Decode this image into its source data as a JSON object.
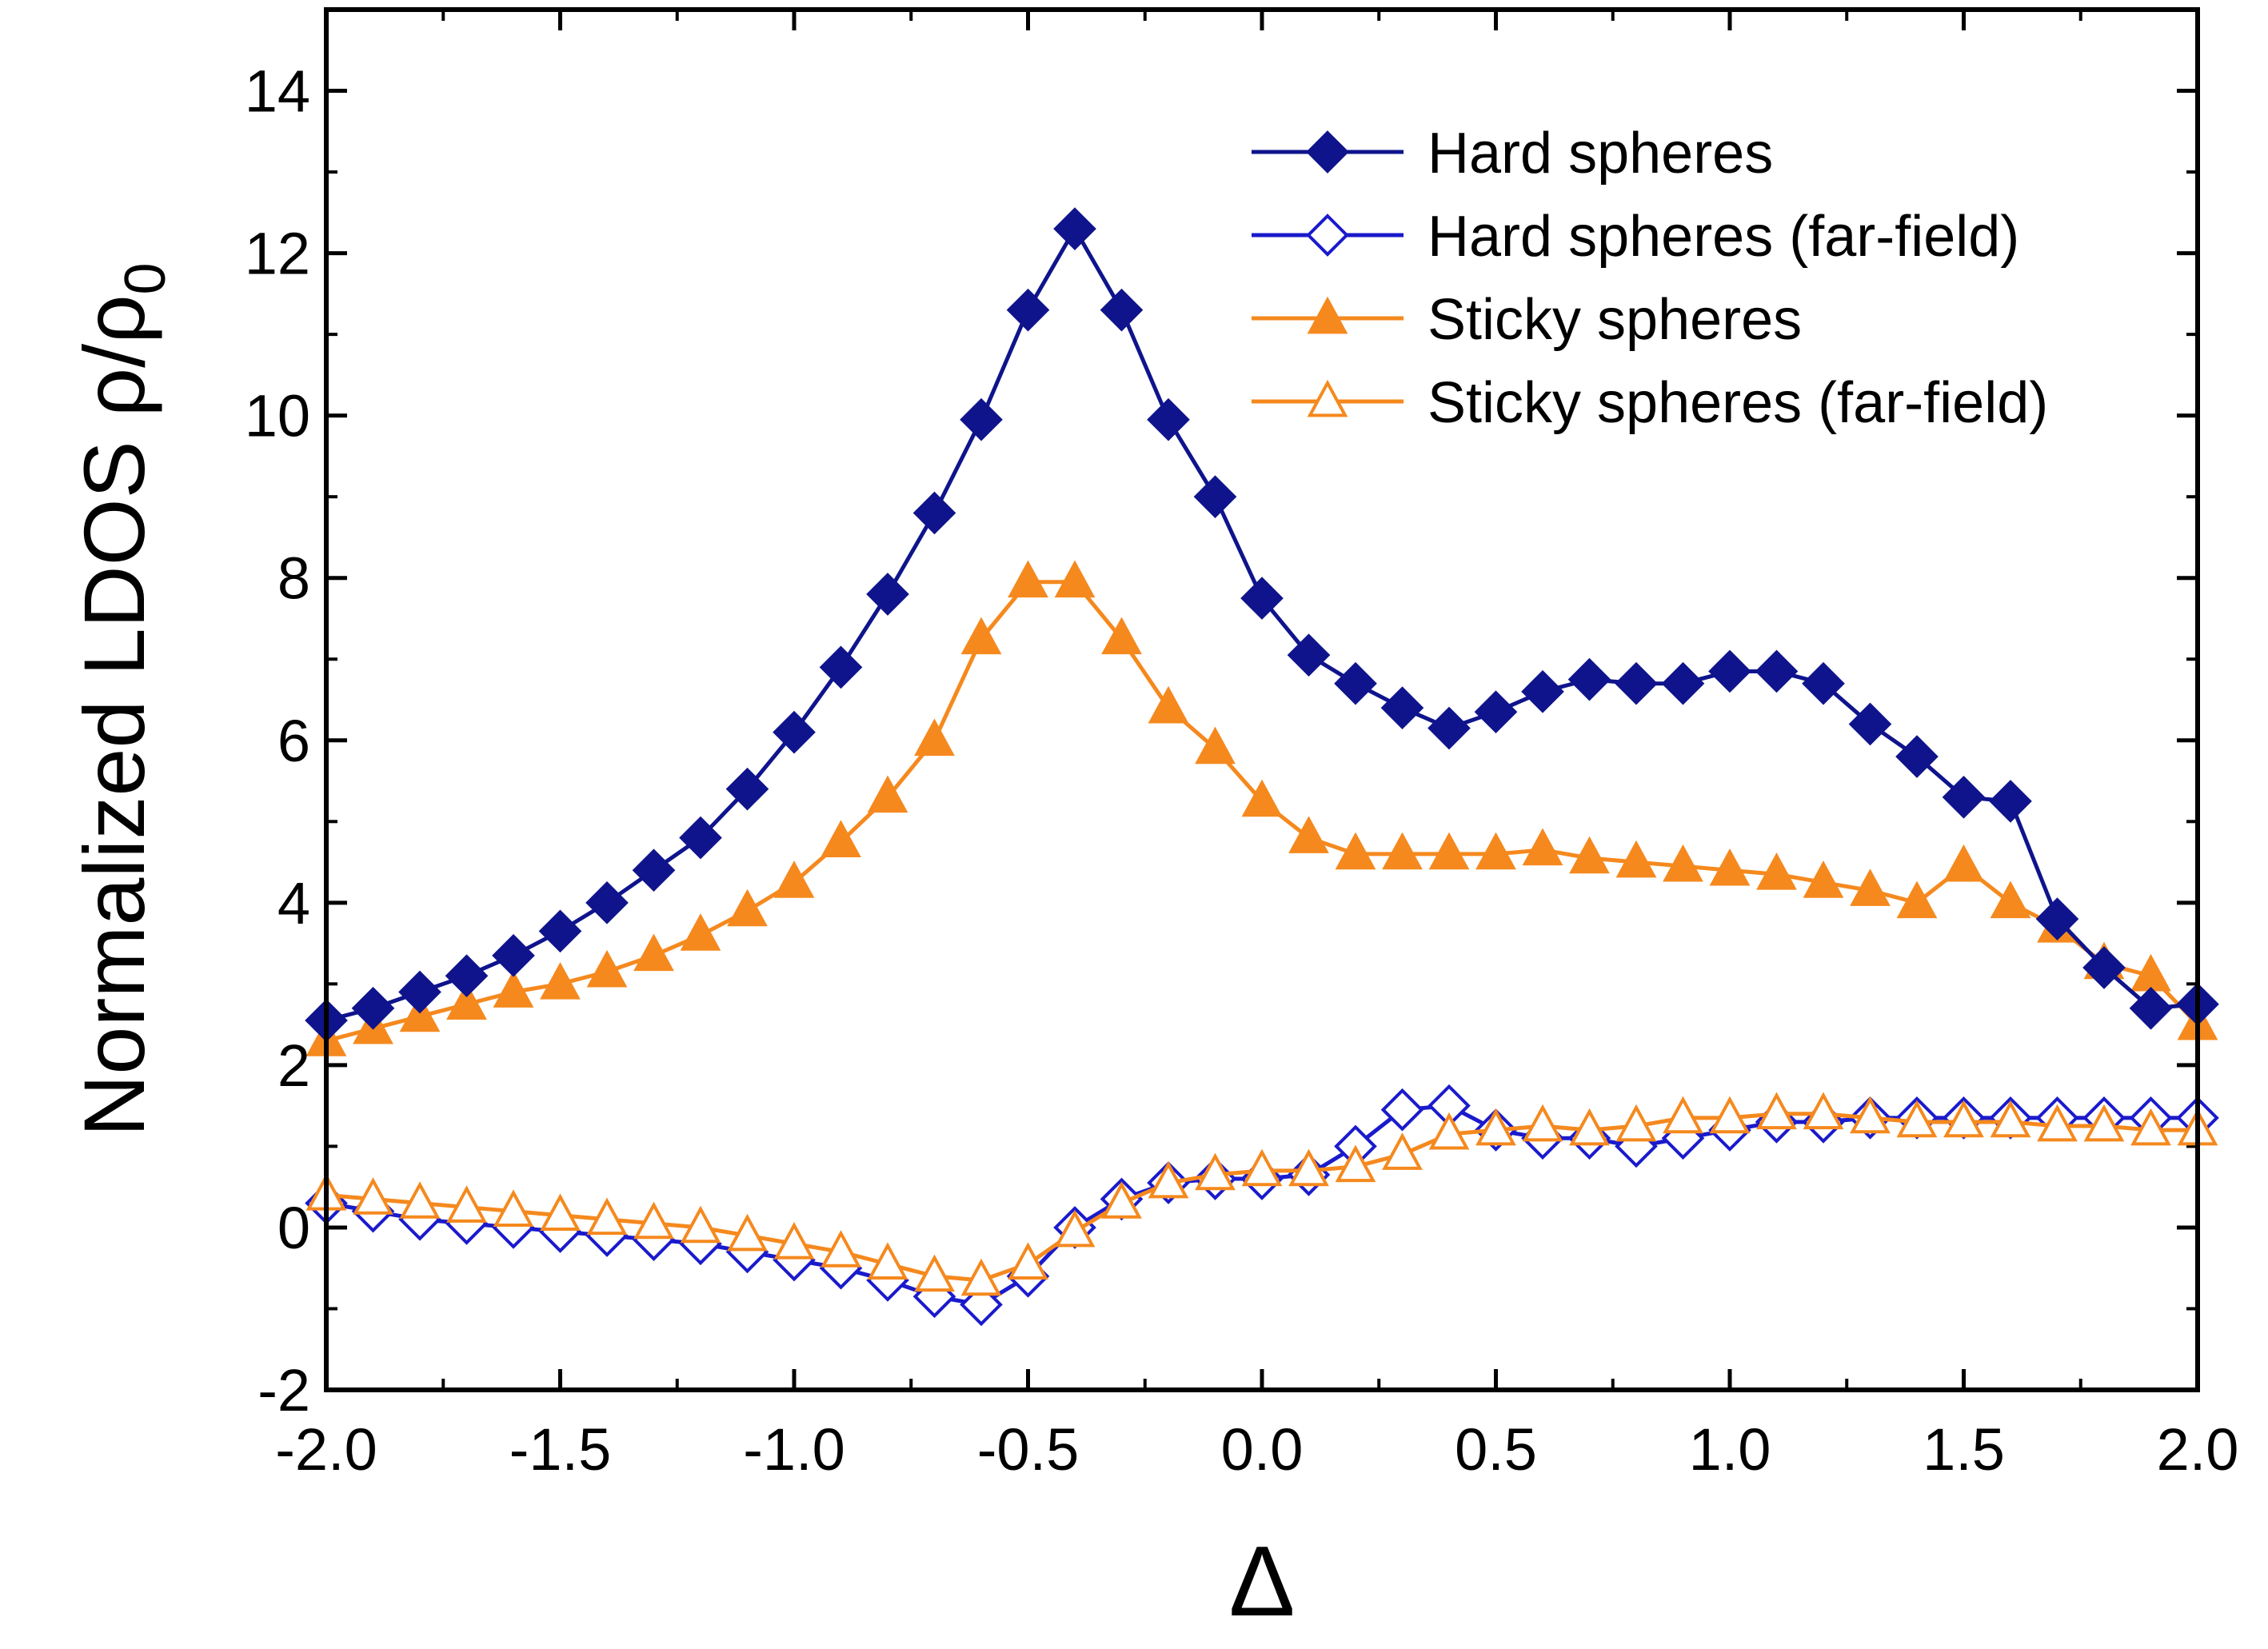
{
  "chart_data": {
    "type": "line",
    "xlabel": "Δ",
    "ylabel": "Normalized LDOS ρ/ρ",
    "ylabel_subscript": "0",
    "xlim": [
      -2.0,
      2.0
    ],
    "ylim": [
      -2,
      15
    ],
    "xticks": [
      "-2.0",
      "-1.5",
      "-1.0",
      "-0.5",
      "0.0",
      "0.5",
      "1.0",
      "1.5",
      "2.0"
    ],
    "yticks": [
      "-2",
      "0",
      "2",
      "4",
      "6",
      "8",
      "10",
      "12",
      "14"
    ],
    "legend_position": "top-right",
    "x": [
      -2.0,
      -1.9,
      -1.8,
      -1.7,
      -1.6,
      -1.5,
      -1.4,
      -1.3,
      -1.2,
      -1.1,
      -1.0,
      -0.9,
      -0.8,
      -0.7,
      -0.6,
      -0.5,
      -0.4,
      -0.3,
      -0.2,
      -0.1,
      0.0,
      0.1,
      0.2,
      0.3,
      0.4,
      0.5,
      0.6,
      0.7,
      0.8,
      0.9,
      1.0,
      1.1,
      1.2,
      1.3,
      1.4,
      1.5,
      1.6,
      1.7,
      1.8,
      1.9,
      2.0
    ],
    "series": [
      {
        "name": "Hard spheres",
        "color": "#0f148c",
        "marker": "diamond",
        "filled": true,
        "values": [
          2.55,
          2.7,
          2.9,
          3.1,
          3.35,
          3.65,
          4.0,
          4.4,
          4.8,
          5.4,
          6.1,
          6.9,
          7.8,
          8.8,
          9.95,
          11.3,
          12.3,
          11.3,
          9.95,
          9.0,
          7.75,
          7.05,
          6.7,
          6.4,
          6.15,
          6.35,
          6.6,
          6.75,
          6.7,
          6.7,
          6.85,
          6.85,
          6.7,
          6.2,
          5.8,
          5.3,
          5.25,
          3.8,
          3.2,
          2.7,
          2.75
        ]
      },
      {
        "name": "Hard spheres (far-field)",
        "color": "#1a1acc",
        "marker": "diamond",
        "filled": false,
        "values": [
          0.3,
          0.2,
          0.1,
          0.05,
          0.0,
          -0.05,
          -0.1,
          -0.15,
          -0.2,
          -0.3,
          -0.4,
          -0.5,
          -0.65,
          -0.85,
          -0.95,
          -0.6,
          0.0,
          0.35,
          0.55,
          0.6,
          0.6,
          0.65,
          1.0,
          1.45,
          1.5,
          1.2,
          1.1,
          1.1,
          1.0,
          1.1,
          1.2,
          1.3,
          1.3,
          1.35,
          1.35,
          1.35,
          1.35,
          1.35,
          1.35,
          1.35,
          1.35
        ]
      },
      {
        "name": "Sticky spheres",
        "color": "#f5891e",
        "marker": "triangle",
        "filled": true,
        "values": [
          2.3,
          2.45,
          2.6,
          2.75,
          2.9,
          3.0,
          3.15,
          3.35,
          3.6,
          3.9,
          4.25,
          4.75,
          5.3,
          6.0,
          7.25,
          7.95,
          7.95,
          7.25,
          6.4,
          5.9,
          5.25,
          4.8,
          4.6,
          4.6,
          4.6,
          4.6,
          4.65,
          4.55,
          4.5,
          4.45,
          4.4,
          4.35,
          4.25,
          4.15,
          4.0,
          4.45,
          4.0,
          3.7,
          3.25,
          3.1,
          2.5
        ]
      },
      {
        "name": "Sticky spheres (far-field)",
        "color": "#f5891e",
        "marker": "triangle",
        "filled": false,
        "values": [
          0.4,
          0.35,
          0.3,
          0.25,
          0.2,
          0.15,
          0.1,
          0.05,
          0.0,
          -0.1,
          -0.2,
          -0.3,
          -0.45,
          -0.6,
          -0.65,
          -0.45,
          -0.05,
          0.3,
          0.55,
          0.65,
          0.7,
          0.7,
          0.75,
          0.9,
          1.15,
          1.2,
          1.25,
          1.2,
          1.25,
          1.35,
          1.35,
          1.4,
          1.4,
          1.35,
          1.3,
          1.3,
          1.3,
          1.25,
          1.25,
          1.2,
          1.2
        ]
      }
    ]
  }
}
